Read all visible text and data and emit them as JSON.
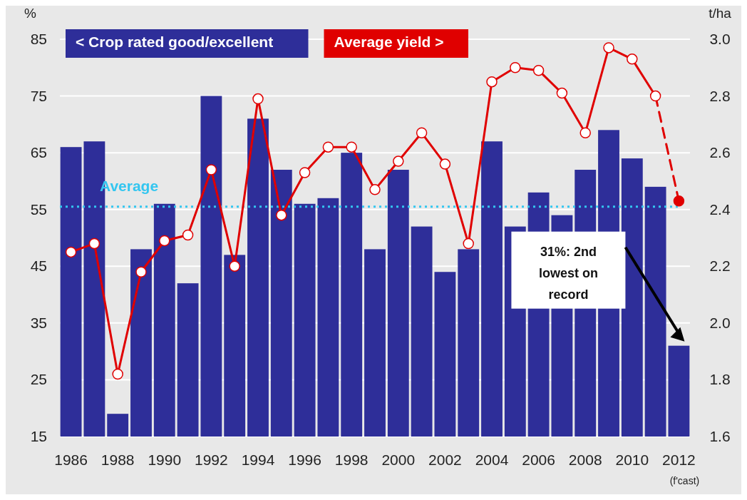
{
  "chart_data": {
    "type": "bar",
    "categories": [
      "1986",
      null,
      "1988",
      null,
      "1990",
      null,
      "1992",
      null,
      "1994",
      null,
      "1996",
      null,
      "1998",
      null,
      "2000",
      null,
      "2002",
      null,
      "2004",
      null,
      "2006",
      null,
      "2008",
      null,
      "2010",
      null,
      "2012"
    ],
    "series": [
      {
        "name": "< Crop rated good/excellent",
        "color": "#2e2e99",
        "values": [
          66,
          67,
          19,
          48,
          56,
          42,
          75,
          47,
          71,
          62,
          56,
          57,
          65,
          48,
          62,
          52,
          44,
          48,
          67,
          52,
          58,
          54,
          62,
          69,
          64,
          59,
          31
        ]
      },
      {
        "name": "Average yield >",
        "type": "line",
        "axis": "y2",
        "color": "#e00000",
        "marker": "circle",
        "line_style": "solid",
        "values": [
          2.25,
          2.28,
          1.82,
          2.18,
          2.29,
          2.31,
          2.54,
          2.2,
          2.79,
          2.38,
          2.53,
          2.62,
          2.62,
          2.47,
          2.57,
          2.67,
          2.56,
          2.28,
          2.85,
          2.9,
          2.89,
          2.81,
          2.67,
          2.97,
          2.93,
          2.8,
          null
        ]
      },
      {
        "type": "line",
        "axis": "y2",
        "color": "#e00000",
        "marker": "circle",
        "line_style": "dashed",
        "values": [
          null,
          null,
          null,
          null,
          null,
          null,
          null,
          null,
          null,
          null,
          null,
          null,
          null,
          null,
          null,
          null,
          null,
          null,
          null,
          null,
          null,
          null,
          null,
          null,
          null,
          2.8,
          2.43
        ]
      }
    ],
    "ylabel": "%",
    "y2label": "t/ha",
    "ylim": [
      15,
      85
    ],
    "yticks": [
      15,
      25,
      35,
      45,
      55,
      65,
      75,
      85
    ],
    "y2lim": [
      1.6,
      3.0
    ],
    "y2ticks": [
      1.6,
      1.8,
      {
        "value": 2.0,
        "label": "2.0"
      },
      2.2,
      2.4,
      2.6,
      2.8,
      {
        "value": 3.0,
        "label": "3.0"
      }
    ],
    "grid": "y",
    "legend": "top",
    "ref_lines": [
      {
        "axis": "y",
        "value": 55.5,
        "label": "Average",
        "color": "#33c6f0",
        "line_style": "dotted"
      }
    ],
    "annotations": [
      "31%: 2nd lowest on record",
      "(f'cast)"
    ]
  }
}
